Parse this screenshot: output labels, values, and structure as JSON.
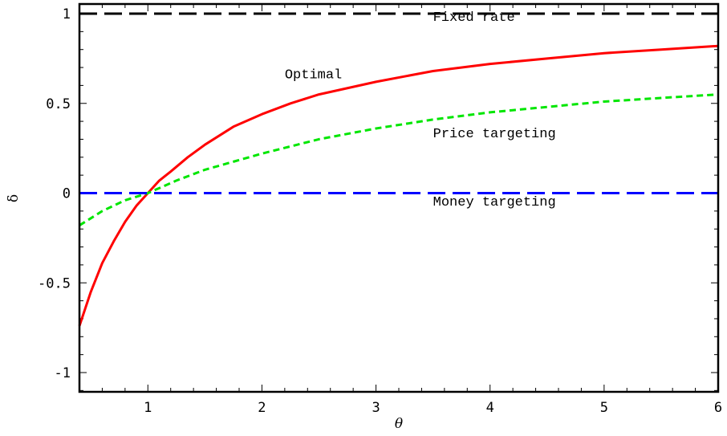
{
  "chart_data": {
    "type": "line",
    "title": "",
    "xlabel": "θ",
    "ylabel": "δ",
    "xlim": [
      0.4,
      6
    ],
    "ylim": [
      -1.1,
      1.05
    ],
    "grid": false,
    "xticks": [
      1,
      2,
      3,
      4,
      5,
      6
    ],
    "xtick_labels": [
      "1",
      "2",
      "3",
      "4",
      "5",
      "6"
    ],
    "yticks": [
      1,
      0.5,
      0,
      -0.5,
      -1
    ],
    "ytick_labels": [
      "1",
      "0.5",
      "0",
      "-0.5",
      "-1"
    ],
    "series": [
      {
        "name": "Fixed rate",
        "color": "#000000",
        "dash": "long-dash",
        "x": [
          0.4,
          6
        ],
        "y": [
          1,
          1
        ]
      },
      {
        "name": "Optimal",
        "color": "#ff0000",
        "dash": "solid",
        "x": [
          0.4,
          0.5,
          0.6,
          0.7,
          0.8,
          0.9,
          1.0,
          1.1,
          1.2,
          1.35,
          1.5,
          1.75,
          2.0,
          2.25,
          2.5,
          3.0,
          3.5,
          4.0,
          4.5,
          5.0,
          5.5,
          6.0
        ],
        "y": [
          -0.74,
          -0.55,
          -0.39,
          -0.27,
          -0.16,
          -0.07,
          0.0,
          0.07,
          0.12,
          0.2,
          0.27,
          0.37,
          0.44,
          0.5,
          0.55,
          0.62,
          0.68,
          0.72,
          0.75,
          0.78,
          0.8,
          0.82
        ]
      },
      {
        "name": "Price targeting",
        "color": "#00e600",
        "dash": "short-dash",
        "x": [
          0.4,
          0.6,
          0.8,
          1.0,
          1.25,
          1.5,
          2.0,
          2.5,
          3.0,
          3.5,
          4.0,
          4.5,
          5.0,
          5.5,
          6.0
        ],
        "y": [
          -0.18,
          -0.1,
          -0.04,
          0.0,
          0.07,
          0.13,
          0.22,
          0.3,
          0.36,
          0.41,
          0.45,
          0.48,
          0.51,
          0.53,
          0.55
        ]
      },
      {
        "name": "Money targeting",
        "color": "#0000ff",
        "dash": "long-dash",
        "x": [
          0.4,
          6
        ],
        "y": [
          0,
          0
        ]
      }
    ],
    "annotations": [
      {
        "text": "Fixed rate",
        "x": 3.5,
        "y": 0.96
      },
      {
        "text": "Optimal",
        "x": 2.2,
        "y": 0.64
      },
      {
        "text": "Price targeting",
        "x": 3.5,
        "y": 0.31
      },
      {
        "text": "Money targeting",
        "x": 3.5,
        "y": -0.07
      }
    ]
  }
}
